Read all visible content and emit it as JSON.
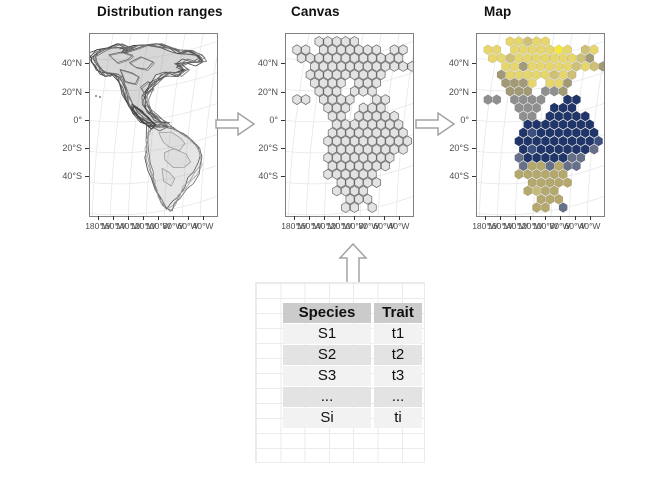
{
  "figure": {
    "panels": [
      {
        "title": "Distribution ranges"
      },
      {
        "title": "Canvas"
      },
      {
        "title": "Map"
      }
    ],
    "axis": {
      "y_ticks": [
        "40°N",
        "20°N",
        "0°",
        "20°S",
        "40°S"
      ],
      "x_ticks": [
        "180°W",
        "160°W",
        "140°W",
        "120°W",
        "100°W",
        "80°W",
        "60°W",
        "40°W"
      ]
    }
  },
  "hex_grid": {
    "rows": [
      "...yydyy......",
      "yy.yyyyyYy.dy.",
      ".yydyyyyyyydo.",
      "..yyoyyyyydydo",
      "..oyyyyydyd...",
      "..oooy.yyo....",
      "...ooo.ggo....",
      "gg.gggg..bb...",
      "....ggg.bbb...",
      "....gg.bbbbb..",
      ".....bbbbbbbb.",
      "....bBbbbbbbb.",
      "....bbbbbbbbbB",
      "....bBbbbbbbs.",
      "....sbbbbbss..",
      "....skkskss...",
      "....kkkkkk....",
      ".....kkkkk....",
      ".....kKkk.....",
      "......kkk.....",
      "......kk.s...."
    ],
    "palette": {
      "Y": "#f6e83b",
      "y": "#e6d66c",
      "d": "#cfc078",
      "o": "#a29a74",
      "g": "#8f8f8f",
      "G": "#7b7b7b",
      "b": "#20366a",
      "B": "#3d4f81",
      "s": "#667089",
      "k": "#b5a86c",
      "K": "#c6ba79"
    },
    "canvas_fill": "#e3e3e3",
    "canvas_stroke": "#666666",
    "map_stroke": "rgba(0,0,0,0.2)"
  },
  "ranges_panel": {
    "na_outline": [
      [
        3,
        22
      ],
      [
        10,
        17
      ],
      [
        20,
        14
      ],
      [
        30,
        12
      ],
      [
        38,
        14
      ],
      [
        34,
        18
      ],
      [
        46,
        13
      ],
      [
        58,
        11
      ],
      [
        70,
        12
      ],
      [
        82,
        15
      ],
      [
        90,
        19
      ],
      [
        99,
        18
      ],
      [
        108,
        21
      ],
      [
        113,
        26
      ],
      [
        106,
        29
      ],
      [
        97,
        28
      ],
      [
        88,
        31
      ],
      [
        95,
        36
      ],
      [
        88,
        41
      ],
      [
        78,
        39
      ],
      [
        70,
        44
      ],
      [
        63,
        50
      ],
      [
        58,
        57
      ],
      [
        55,
        64
      ],
      [
        56,
        71
      ],
      [
        60,
        78
      ],
      [
        66,
        84
      ],
      [
        72,
        88
      ],
      [
        78,
        91
      ],
      [
        70,
        94
      ],
      [
        61,
        91
      ],
      [
        52,
        86
      ],
      [
        45,
        79
      ],
      [
        40,
        71
      ],
      [
        36,
        62
      ],
      [
        34,
        53
      ],
      [
        30,
        45
      ],
      [
        24,
        40
      ],
      [
        16,
        41
      ],
      [
        10,
        37
      ],
      [
        6,
        30
      ],
      [
        3,
        26
      ]
    ],
    "sa_outline": [
      [
        60,
        92
      ],
      [
        68,
        90
      ],
      [
        76,
        92
      ],
      [
        85,
        96
      ],
      [
        94,
        101
      ],
      [
        102,
        107
      ],
      [
        108,
        114
      ],
      [
        111,
        122
      ],
      [
        110,
        131
      ],
      [
        106,
        139
      ],
      [
        101,
        147
      ],
      [
        95,
        155
      ],
      [
        89,
        163
      ],
      [
        84,
        170
      ],
      [
        79,
        176
      ],
      [
        74,
        172
      ],
      [
        70,
        165
      ],
      [
        66,
        156
      ],
      [
        63,
        147
      ],
      [
        60,
        137
      ],
      [
        58,
        127
      ],
      [
        57,
        117
      ],
      [
        57,
        107
      ],
      [
        58,
        99
      ]
    ],
    "ca_squiggle": [
      [
        44,
        72
      ],
      [
        52,
        78
      ],
      [
        58,
        84
      ],
      [
        64,
        90
      ],
      [
        60,
        93
      ],
      [
        52,
        87
      ],
      [
        46,
        80
      ],
      [
        42,
        74
      ]
    ],
    "na_blobs": [
      [
        [
          20,
          22
        ],
        [
          30,
          18
        ],
        [
          42,
          20
        ],
        [
          38,
          26
        ],
        [
          28,
          28
        ]
      ],
      [
        [
          40,
          28
        ],
        [
          52,
          24
        ],
        [
          62,
          28
        ],
        [
          56,
          34
        ],
        [
          46,
          34
        ]
      ],
      [
        [
          30,
          36
        ],
        [
          42,
          38
        ],
        [
          50,
          44
        ],
        [
          44,
          50
        ],
        [
          34,
          46
        ]
      ],
      [
        [
          50,
          52
        ],
        [
          58,
          48
        ],
        [
          64,
          54
        ],
        [
          58,
          60
        ],
        [
          52,
          58
        ]
      ]
    ],
    "sa_blobs": [
      [
        [
          70,
          100
        ],
        [
          80,
          98
        ],
        [
          90,
          103
        ],
        [
          95,
          110
        ],
        [
          90,
          116
        ],
        [
          80,
          114
        ],
        [
          72,
          108
        ]
      ],
      [
        [
          75,
          118
        ],
        [
          85,
          116
        ],
        [
          95,
          120
        ],
        [
          100,
          127
        ],
        [
          94,
          134
        ],
        [
          84,
          133
        ],
        [
          76,
          127
        ]
      ],
      [
        [
          72,
          135
        ],
        [
          80,
          138
        ],
        [
          86,
          146
        ],
        [
          80,
          152
        ],
        [
          73,
          146
        ]
      ]
    ],
    "dots": [
      [
        6,
        62
      ],
      [
        10,
        63
      ]
    ],
    "stroke_dark": "#474747",
    "stroke_mid": "#6e6e6e",
    "stroke_light": "#9d9d9d"
  },
  "table": {
    "headers": [
      "Species",
      "Trait"
    ],
    "rows": [
      [
        "S1",
        "t1"
      ],
      [
        "S2",
        "t2"
      ],
      [
        "S3",
        "t3"
      ],
      [
        "...",
        "..."
      ],
      [
        "Si",
        "ti"
      ]
    ]
  },
  "colors": {
    "panel_border": "#808080",
    "graticule": "#e7e7e7",
    "tick_text": "#4d4d4d",
    "tick_mark": "#333333",
    "title_text": "#111111",
    "arrow_stroke": "#a3a3a3",
    "arrow_fill": "#ffffff",
    "sheet_line": "#ebebeb",
    "header_bg": "#cbcbcb",
    "row_light": "#f2f2f2",
    "row_dark": "#e3e3e3",
    "cell_text": "#111111"
  }
}
